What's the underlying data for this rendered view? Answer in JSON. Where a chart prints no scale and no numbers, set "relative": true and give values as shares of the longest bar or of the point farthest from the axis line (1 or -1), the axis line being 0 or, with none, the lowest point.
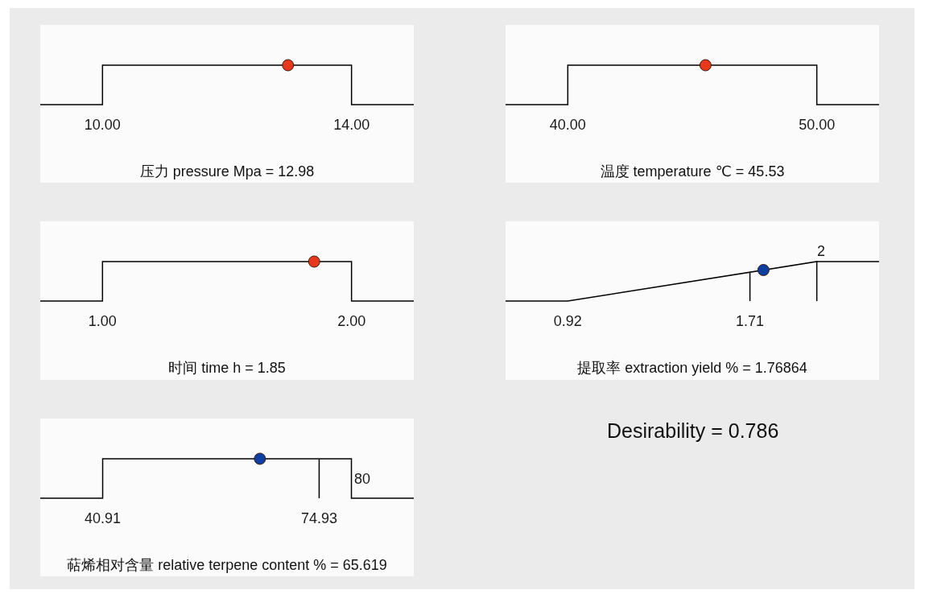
{
  "chart_data": [
    {
      "type": "line",
      "xlabel": "压力 pressure Mpa = 12.98",
      "xlim": [
        9,
        15
      ],
      "xticks": [
        {
          "value": 10,
          "label": "10.00"
        },
        {
          "value": 14,
          "label": "14.00"
        }
      ],
      "relative": true,
      "series": [
        {
          "color": "#000000",
          "x": [
            9,
            10,
            10,
            14,
            14,
            15
          ],
          "values": [
            0,
            0,
            1,
            1,
            0,
            0
          ]
        },
        {
          "type": "scatter",
          "marker": "circle",
          "color": "#e8381c",
          "x": [
            12.98
          ],
          "values": [
            1
          ]
        }
      ]
    },
    {
      "type": "line",
      "xlabel": "温度 temperature ℃ = 45.53",
      "xlim": [
        37.5,
        52.5
      ],
      "xticks": [
        {
          "value": 40,
          "label": "40.00"
        },
        {
          "value": 50,
          "label": "50.00"
        }
      ],
      "relative": true,
      "series": [
        {
          "color": "#000000",
          "x": [
            37.5,
            40,
            40,
            50,
            50,
            52.5
          ],
          "values": [
            0,
            0,
            1,
            1,
            0,
            0
          ]
        },
        {
          "type": "scatter",
          "marker": "circle",
          "color": "#e8381c",
          "x": [
            45.53
          ],
          "values": [
            1
          ]
        }
      ]
    },
    {
      "type": "line",
      "xlabel": "时间 time h = 1.85",
      "xlim": [
        0.75,
        2.25
      ],
      "xticks": [
        {
          "value": 1,
          "label": "1.00"
        },
        {
          "value": 2,
          "label": "2.00"
        }
      ],
      "relative": true,
      "series": [
        {
          "color": "#000000",
          "x": [
            0.75,
            1,
            1,
            2,
            2,
            2.25
          ],
          "values": [
            0,
            0,
            1,
            1,
            0,
            0
          ]
        },
        {
          "type": "scatter",
          "marker": "circle",
          "color": "#e8381c",
          "x": [
            1.85
          ],
          "values": [
            1
          ]
        }
      ]
    },
    {
      "type": "line",
      "xlabel": "提取率 extraction yield % = 1.76864",
      "xlim": [
        0.65,
        2.27
      ],
      "xticks": [
        0.92,
        1.71
      ],
      "relative": true,
      "annotations": [
        {
          "text": "2",
          "x": 2,
          "y": 1
        }
      ],
      "series": [
        {
          "color": "#000000",
          "x": [
            0.65,
            0.92,
            1.71,
            1.71,
            1.71,
            2,
            2,
            2,
            2.27
          ],
          "values": [
            0,
            0,
            0.73,
            0,
            0.73,
            1,
            0,
            1,
            1
          ]
        },
        {
          "type": "scatter",
          "marker": "circle",
          "color": "#0d3fa0",
          "x": [
            1.76864
          ],
          "values": [
            0.786
          ]
        }
      ]
    },
    {
      "type": "line",
      "xlabel": "萜烯相对含量 relative terpene content % = 65.619",
      "xlim": [
        31.1,
        89.8
      ],
      "xticks": [
        40.91,
        74.93
      ],
      "relative": true,
      "annotations": [
        {
          "text": "80",
          "x": 80,
          "y": 0.5
        }
      ],
      "series": [
        {
          "color": "#000000",
          "x": [
            31.1,
            40.91,
            40.91,
            74.93,
            74.93,
            74.93,
            80,
            80,
            89.8
          ],
          "values": [
            0,
            0,
            1,
            1,
            0,
            1,
            1,
            0,
            0
          ]
        },
        {
          "type": "scatter",
          "marker": "circle",
          "color": "#0d3fa0",
          "x": [
            65.619
          ],
          "values": [
            1
          ]
        }
      ]
    },
    {
      "type": "other",
      "title": "Desirability = 0.786"
    }
  ]
}
